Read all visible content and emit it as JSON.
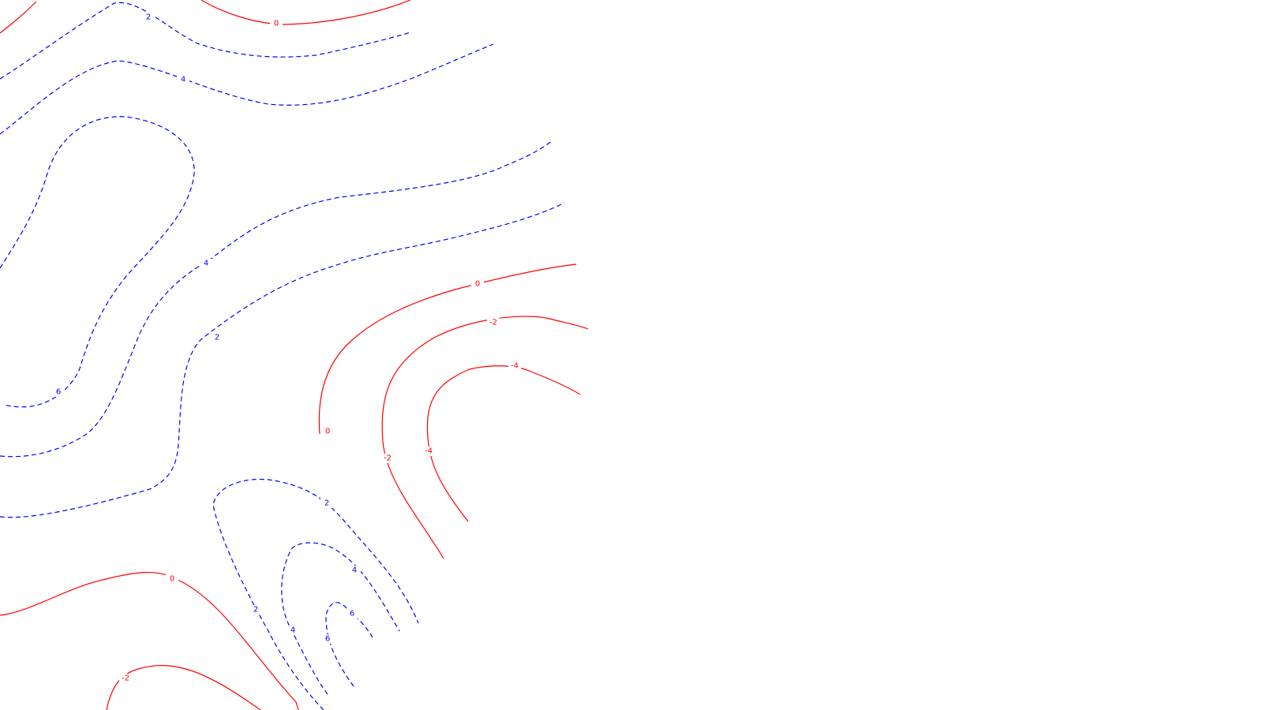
{
  "chart_data": {
    "type": "contour",
    "title": "",
    "xlabel": "",
    "ylabel": "",
    "grid": false,
    "legend": "none",
    "line_styles": {
      "positive": {
        "color": "#0000ff",
        "dash": "dashed"
      },
      "non_positive": {
        "color": "#ff0000",
        "dash": "solid"
      }
    },
    "contour_levels": [
      -4,
      -2,
      0,
      2,
      4,
      6
    ],
    "contours": [
      {
        "level": 0,
        "label": "0"
      },
      {
        "level": 2,
        "label": "2"
      },
      {
        "level": 4,
        "label": "4"
      },
      {
        "level": 6,
        "label": "6"
      },
      {
        "level": 4,
        "label": "4"
      },
      {
        "level": 2,
        "label": "2"
      },
      {
        "level": 0,
        "label": "0"
      },
      {
        "level": -2,
        "label": "-2"
      },
      {
        "level": -4,
        "label": "-4"
      },
      {
        "level": 0,
        "label": "0"
      },
      {
        "level": -2,
        "label": "-2"
      },
      {
        "level": 2,
        "label": "2"
      },
      {
        "level": 4,
        "label": "4"
      },
      {
        "level": 6,
        "label": "6"
      },
      {
        "level": 0,
        "label": "0"
      },
      {
        "level": -2,
        "label": "-2"
      },
      {
        "level": -4,
        "label": "-4"
      }
    ]
  }
}
